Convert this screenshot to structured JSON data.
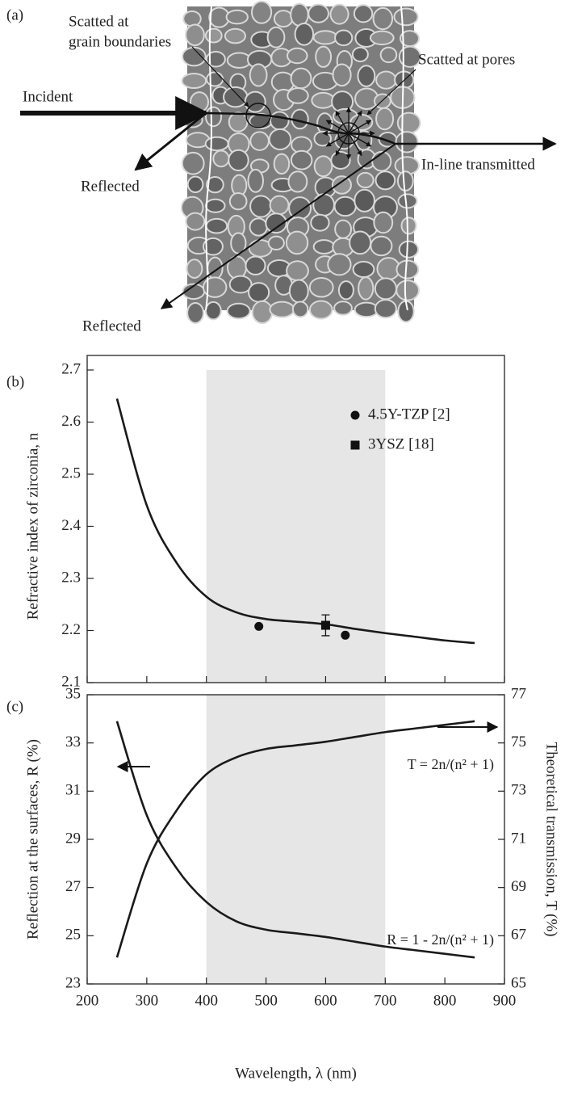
{
  "diagram": {
    "panel_label": "(a)",
    "labels": {
      "scattered_grain": [
        "Scatted at",
        "grain boundaries"
      ],
      "scattered_pores": "Scatted at pores",
      "incident": "Incident",
      "reflected_1": "Reflected",
      "transmitted": "In-line transmitted",
      "reflected_2": "Reflected"
    }
  },
  "chart_data": [
    {
      "type": "line",
      "panel_label": "(b)",
      "ylabel": "Refractive index of zirconia, n",
      "xlim": [
        200,
        900
      ],
      "xticks": [
        200,
        300,
        400,
        500,
        600,
        700,
        800,
        900
      ],
      "ylim": [
        2.1,
        2.7
      ],
      "yticks": [
        2.1,
        2.2,
        2.3,
        2.4,
        2.5,
        2.6,
        2.7
      ],
      "shade": [
        400,
        700
      ],
      "shade_color": "#e6e6e6",
      "series": [
        {
          "x": [
            250,
            300,
            350,
            400,
            450,
            500,
            550,
            600,
            650,
            700,
            750,
            800,
            850
          ],
          "values": [
            2.645,
            2.44,
            2.33,
            2.265,
            2.235,
            2.222,
            2.217,
            2.212,
            2.203,
            2.195,
            2.188,
            2.181,
            2.176
          ],
          "color": "#1a1a1a"
        },
        {
          "name": "4.5Y-TZP [2]",
          "type": "scatter",
          "marker": "circle",
          "color": "#111111",
          "x": [
            488,
            633
          ],
          "values": [
            2.208,
            2.191
          ]
        },
        {
          "name": "3YSZ [18]",
          "type": "scatter",
          "marker": "square",
          "color": "#111111",
          "x": [
            600
          ],
          "values": [
            2.21
          ],
          "errors": [
            0.02
          ]
        }
      ]
    },
    {
      "type": "line",
      "panel_label": "(c)",
      "xlabel": "Wavelength, λ (nm)",
      "ylabel": "Reflection at the surfaces, R (%)",
      "y2label": "Theoretical transmission, T (%)",
      "xlim": [
        200,
        900
      ],
      "xticks": [
        200,
        300,
        400,
        500,
        600,
        700,
        800,
        900
      ],
      "ylim": [
        23,
        35
      ],
      "yticks": [
        23,
        25,
        27,
        29,
        31,
        33,
        35
      ],
      "y2lim": [
        65,
        77
      ],
      "y2ticks": [
        65,
        67,
        69,
        71,
        73,
        75,
        77
      ],
      "shade": [
        400,
        700
      ],
      "shade_color": "#e6e6e6",
      "annotations": [
        "T = 2n/(n² + 1)",
        "R = 1 - 2n/(n² + 1)"
      ],
      "series": [
        {
          "x": [
            250,
            300,
            350,
            400,
            450,
            500,
            550,
            600,
            650,
            700,
            750,
            800,
            850
          ],
          "values": [
            33.9,
            30.0,
            27.8,
            26.4,
            25.6,
            25.25,
            25.1,
            24.95,
            24.75,
            24.55,
            24.4,
            24.25,
            24.1
          ],
          "color": "#1a1a1a"
        },
        {
          "x": [
            250,
            300,
            350,
            400,
            450,
            500,
            550,
            600,
            650,
            700,
            750,
            800,
            850
          ],
          "values": [
            66.1,
            70.0,
            72.2,
            73.7,
            74.4,
            74.75,
            74.9,
            75.05,
            75.25,
            75.45,
            75.6,
            75.75,
            75.9
          ],
          "color": "#1a1a1a",
          "axis": "y2"
        }
      ]
    }
  ]
}
